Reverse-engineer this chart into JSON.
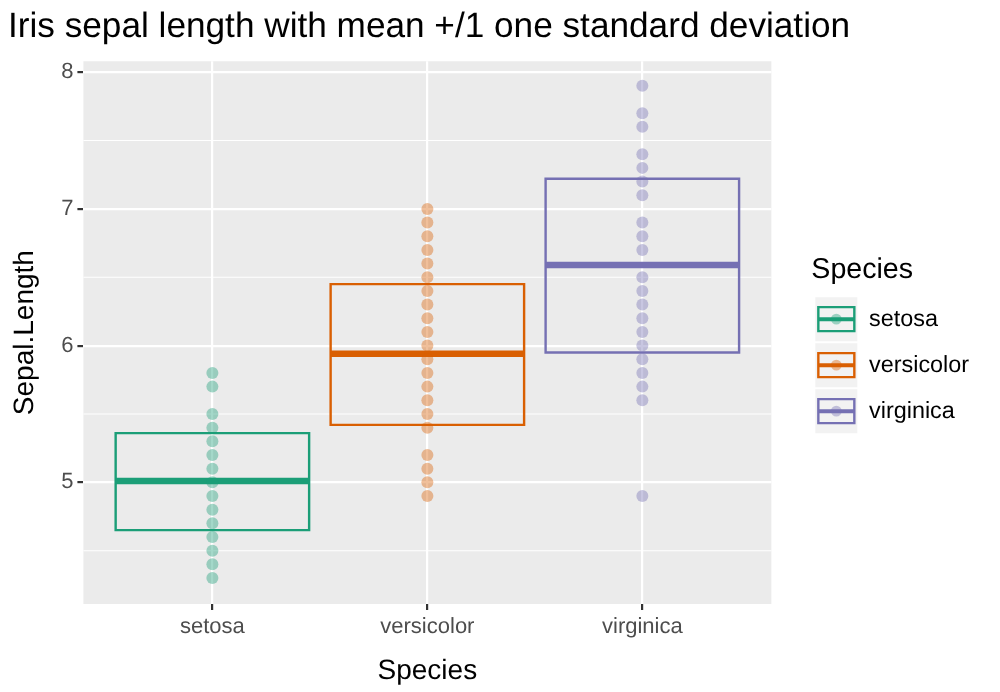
{
  "chart_data": {
    "type": "box",
    "title": "Iris sepal length with mean +/1 one standard deviation",
    "xlabel": "Species",
    "ylabel": "Sepal.Length",
    "legend_title": "Species",
    "categories": [
      "setosa",
      "versicolor",
      "virginica"
    ],
    "boxes": [
      {
        "low": 4.65,
        "q1": 4.65,
        "median": 5.01,
        "q3": 5.36,
        "high": 5.36
      },
      {
        "low": 5.42,
        "q1": 5.42,
        "median": 5.94,
        "q3": 6.45,
        "high": 6.45
      },
      {
        "low": 5.95,
        "q1": 5.95,
        "median": 6.59,
        "q3": 7.22,
        "high": 7.22
      }
    ],
    "colors": [
      "#1b9e77",
      "#d95f02",
      "#7570b3"
    ],
    "series": [
      {
        "name": "setosa",
        "type": "scatter",
        "color": "#1b9e77",
        "x": [
          "setosa",
          "setosa",
          "setosa",
          "setosa",
          "setosa",
          "setosa",
          "setosa",
          "setosa",
          "setosa",
          "setosa",
          "setosa",
          "setosa",
          "setosa",
          "setosa",
          "setosa"
        ],
        "values": [
          4.3,
          4.4,
          4.5,
          4.6,
          4.7,
          4.8,
          4.9,
          5.0,
          5.1,
          5.2,
          5.3,
          5.4,
          5.5,
          5.7,
          5.8
        ]
      },
      {
        "name": "versicolor",
        "type": "scatter",
        "color": "#d95f02",
        "x": [
          "versicolor",
          "versicolor",
          "versicolor",
          "versicolor",
          "versicolor",
          "versicolor",
          "versicolor",
          "versicolor",
          "versicolor",
          "versicolor",
          "versicolor",
          "versicolor",
          "versicolor",
          "versicolor",
          "versicolor",
          "versicolor",
          "versicolor",
          "versicolor",
          "versicolor",
          "versicolor",
          "versicolor"
        ],
        "values": [
          4.9,
          5.0,
          5.1,
          5.2,
          5.4,
          5.5,
          5.6,
          5.7,
          5.8,
          5.9,
          6.0,
          6.1,
          6.2,
          6.3,
          6.4,
          6.5,
          6.6,
          6.7,
          6.8,
          6.9,
          7.0
        ]
      },
      {
        "name": "virginica",
        "type": "scatter",
        "color": "#7570b3",
        "x": [
          "virginica",
          "virginica",
          "virginica",
          "virginica",
          "virginica",
          "virginica",
          "virginica",
          "virginica",
          "virginica",
          "virginica",
          "virginica",
          "virginica",
          "virginica",
          "virginica",
          "virginica",
          "virginica",
          "virginica",
          "virginica",
          "virginica",
          "virginica",
          "virginica"
        ],
        "values": [
          4.9,
          5.6,
          5.7,
          5.8,
          5.9,
          6.0,
          6.1,
          6.2,
          6.3,
          6.4,
          6.5,
          6.7,
          6.8,
          6.9,
          7.1,
          7.2,
          7.3,
          7.4,
          7.6,
          7.7,
          7.9
        ]
      }
    ],
    "ylim": [
      4.11,
      8.08
    ],
    "yticks": [
      5,
      6,
      7,
      8
    ],
    "grid": true,
    "legend": "right",
    "marker": "circle"
  }
}
